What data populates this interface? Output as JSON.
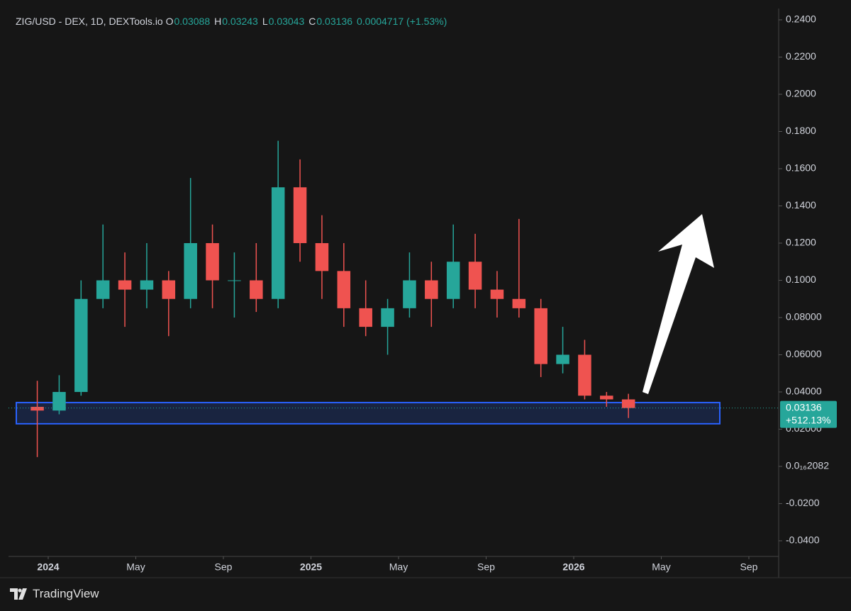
{
  "chart_data": {
    "type": "candlestick",
    "title": "ZIG/USD - DEX, 1D, DEXTools.io",
    "ohlc_labels": {
      "open_key": "O",
      "open": "0.03088",
      "high_key": "H",
      "high": "0.03243",
      "low_key": "L",
      "low": "0.03043",
      "close_key": "C",
      "close": "0.03136",
      "change": "0.0004717 (+1.53%)"
    },
    "x": [
      "2023-12",
      "2024-01",
      "2024-02",
      "2024-03",
      "2024-04",
      "2024-05",
      "2024-06",
      "2024-07",
      "2024-08",
      "2024-09",
      "2024-10",
      "2024-11",
      "2024-12",
      "2025-01",
      "2025-02",
      "2025-03",
      "2025-04",
      "2025-05",
      "2025-06",
      "2025-07",
      "2025-08",
      "2025-09",
      "2025-10",
      "2025-11",
      "2025-12",
      "2026-01",
      "2026-02",
      "2026-03"
    ],
    "open": [
      0.032,
      0.03,
      0.04,
      0.09,
      0.1,
      0.095,
      0.1,
      0.09,
      0.12,
      0.1,
      0.1,
      0.09,
      0.15,
      0.12,
      0.105,
      0.085,
      0.075,
      0.085,
      0.1,
      0.09,
      0.11,
      0.095,
      0.09,
      0.085,
      0.055,
      0.06,
      0.038,
      0.036
    ],
    "high": [
      0.046,
      0.049,
      0.1,
      0.13,
      0.115,
      0.12,
      0.105,
      0.155,
      0.13,
      0.115,
      0.12,
      0.175,
      0.165,
      0.135,
      0.12,
      0.1,
      0.09,
      0.115,
      0.11,
      0.13,
      0.125,
      0.105,
      0.133,
      0.09,
      0.075,
      0.068,
      0.04,
      0.039
    ],
    "low": [
      0.005,
      0.028,
      0.038,
      0.085,
      0.075,
      0.085,
      0.07,
      0.085,
      0.085,
      0.08,
      0.083,
      0.085,
      0.11,
      0.09,
      0.075,
      0.07,
      0.06,
      0.08,
      0.075,
      0.085,
      0.085,
      0.08,
      0.08,
      0.048,
      0.05,
      0.036,
      0.032,
      0.026
    ],
    "close": [
      0.03,
      0.04,
      0.09,
      0.1,
      0.095,
      0.1,
      0.09,
      0.12,
      0.1,
      0.1,
      0.09,
      0.15,
      0.12,
      0.105,
      0.085,
      0.075,
      0.085,
      0.1,
      0.09,
      0.11,
      0.095,
      0.09,
      0.085,
      0.055,
      0.06,
      0.038,
      0.036,
      0.03136
    ],
    "up_color": "#26a69a",
    "down_color": "#ef5350",
    "ylim": [
      -0.0484,
      0.2461
    ],
    "yticks": [
      {
        "value": 0.24,
        "label": "0.2400"
      },
      {
        "value": 0.22,
        "label": "0.2200"
      },
      {
        "value": 0.2,
        "label": "0.2000"
      },
      {
        "value": 0.18,
        "label": "0.1800"
      },
      {
        "value": 0.16,
        "label": "0.1600"
      },
      {
        "value": 0.14,
        "label": "0.1400"
      },
      {
        "value": 0.12,
        "label": "0.1200"
      },
      {
        "value": 0.1,
        "label": "0.1000"
      },
      {
        "value": 0.08,
        "label": "0.08000"
      },
      {
        "value": 0.06,
        "label": "0.06000"
      },
      {
        "value": 0.04,
        "label": "0.04000"
      },
      {
        "value": 0.02,
        "label": "0.02000"
      },
      {
        "value": 0,
        "label": "0.0₁₆2082"
      },
      {
        "value": -0.02,
        "label": "-0.0200"
      },
      {
        "value": -0.04,
        "label": "-0.0400"
      }
    ],
    "xticks": [
      {
        "value": "2024-01",
        "label": "2024"
      },
      {
        "value": "2024-05",
        "label": "May"
      },
      {
        "value": "2024-09",
        "label": "Sep"
      },
      {
        "value": "2025-01",
        "label": "2025"
      },
      {
        "value": "2025-05",
        "label": "May"
      },
      {
        "value": "2025-09",
        "label": "Sep"
      },
      {
        "value": "2026-01",
        "label": "2026"
      },
      {
        "value": "2026-05",
        "label": "May"
      },
      {
        "value": "2026-09",
        "label": "Sep"
      }
    ],
    "last_price": {
      "value": 0.03136,
      "label": "0.03136",
      "change": "+512.13%",
      "color": "#26a69a"
    },
    "zone": {
      "top": 0.0343,
      "bottom": 0.0229,
      "color": "#2962ff"
    },
    "watermark": "TradingView"
  }
}
